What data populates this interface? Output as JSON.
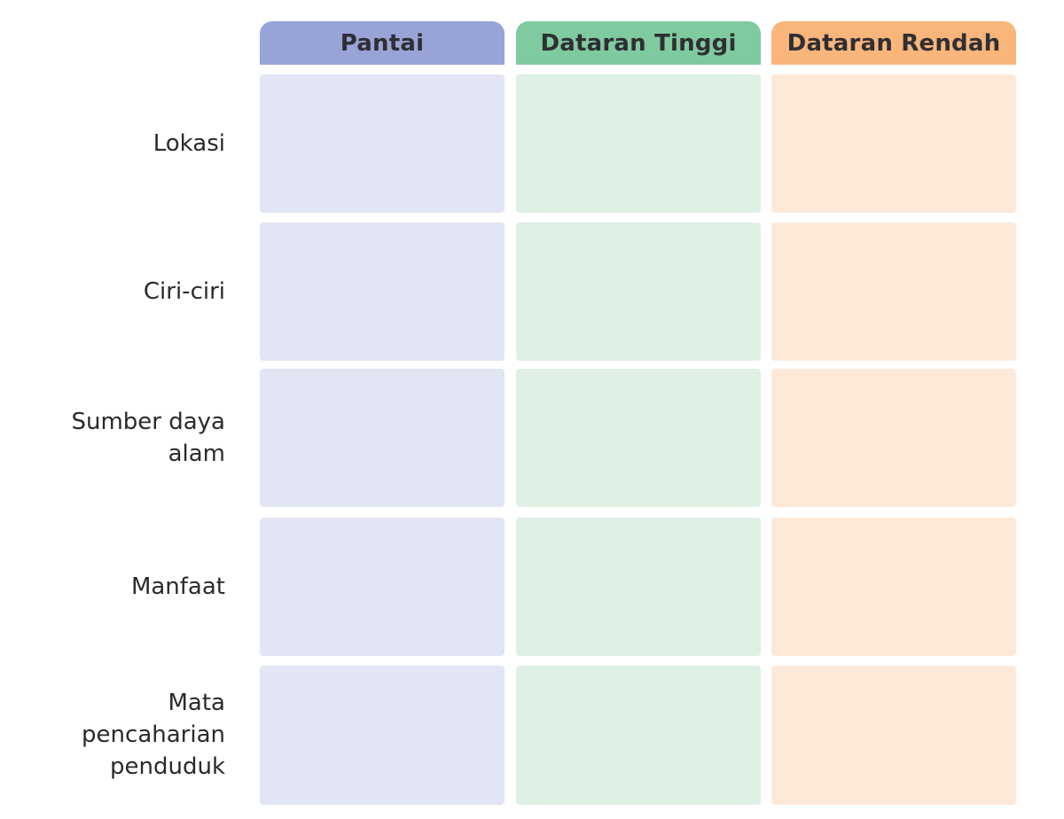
{
  "columns": [
    {
      "label": "Pantai",
      "header_color": "#98a4d8",
      "cell_color": "#e2e5f3"
    },
    {
      "label": "Dataran Tinggi",
      "header_color": "#7fcb9f",
      "cell_color": "#dff0e4"
    },
    {
      "label": "Dataran Rendah",
      "header_color": "#f9b57a",
      "cell_color": "#fee9d9"
    }
  ],
  "rows": [
    {
      "label": "Lokasi"
    },
    {
      "label": "Ciri-ciri"
    },
    {
      "label": "Sumber daya\nalam"
    },
    {
      "label": "Manfaat"
    },
    {
      "label": "Mata\npencaharian\npenduduk"
    }
  ]
}
